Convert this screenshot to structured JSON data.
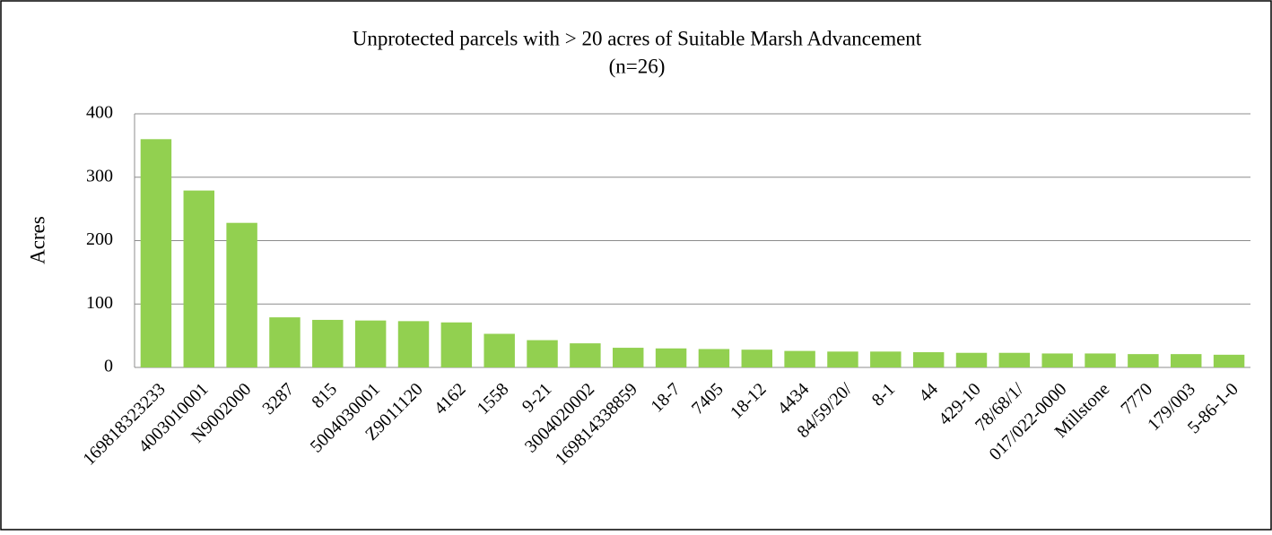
{
  "chart_data": {
    "type": "bar",
    "title": "Unprotected parcels with  > 20 acres of Suitable Marsh Advancement",
    "subtitle": "(n=26)",
    "y_label": "Acres",
    "categories": [
      "169818323233",
      "4003010001",
      "N9002000",
      "3287",
      "815",
      "5004030001",
      "Z9011120",
      "4162",
      "1558",
      "9-21",
      "3004020002",
      "169814338859",
      "18-7",
      "7405",
      "18-12",
      "4434",
      "84/59/20/",
      "8-1",
      "44",
      "429-10",
      "78/68/1/",
      "017/022-0000",
      "Millstone",
      "7770",
      "179/003",
      "5-86-1-0"
    ],
    "values": [
      360,
      279,
      228,
      79,
      75,
      74,
      73,
      71,
      53,
      43,
      38,
      31,
      30,
      29,
      28,
      26,
      25,
      25,
      24,
      23,
      23,
      22,
      22,
      21,
      21,
      20
    ],
    "color": "#92d050",
    "ylim": [
      0,
      400
    ],
    "yticks": [
      0,
      100,
      200,
      300,
      400
    ],
    "grid": true
  }
}
